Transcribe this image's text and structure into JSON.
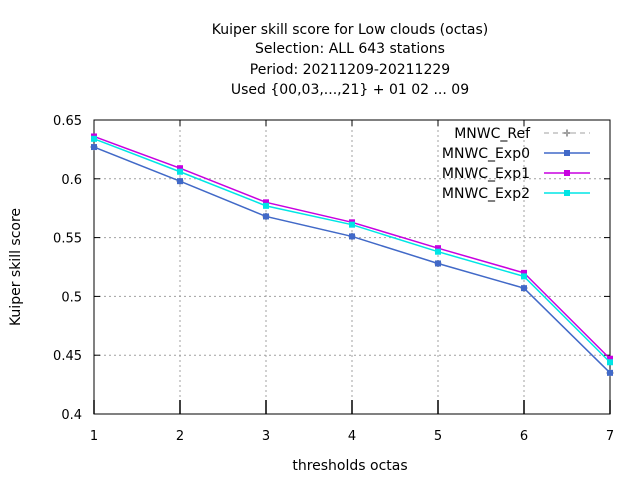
{
  "title_lines": [
    "Kuiper skill score  for Low clouds (octas)",
    "Selection: ALL    643 stations",
    "Period: 20211209-20211229",
    "Used {00,03,...,21} + 01 02 ... 09"
  ],
  "chart_data": {
    "type": "line",
    "title": "Kuiper skill score  for Low clouds (octas)",
    "xlabel": "thresholds octas",
    "ylabel": "Kuiper skill score",
    "x": [
      1,
      2,
      3,
      4,
      5,
      6,
      7
    ],
    "xlim": [
      1,
      7
    ],
    "ylim": [
      0.4,
      0.65
    ],
    "yticks": [
      0.4,
      0.45,
      0.5,
      0.55,
      0.6,
      0.65
    ],
    "ytick_labels": [
      "0.4",
      "0.45",
      "0.5",
      "0.55",
      "0.6",
      "0.65"
    ],
    "xtick_labels": [
      "1",
      "2",
      "3",
      "4",
      "5",
      "6",
      "7"
    ],
    "grid": true,
    "legend_position": "top-right",
    "series": [
      {
        "name": "MNWC_Ref",
        "color": "#a0a0a0",
        "dashed": true,
        "values": [
          0.627,
          0.598,
          0.568,
          0.551,
          0.528,
          0.507,
          0.435
        ]
      },
      {
        "name": "MNWC_Exp0",
        "color": "#4169c8",
        "dashed": false,
        "values": [
          0.627,
          0.598,
          0.568,
          0.551,
          0.528,
          0.507,
          0.435
        ]
      },
      {
        "name": "MNWC_Exp1",
        "color": "#c800e0",
        "dashed": false,
        "values": [
          0.636,
          0.609,
          0.58,
          0.563,
          0.541,
          0.52,
          0.447
        ]
      },
      {
        "name": "MNWC_Exp2",
        "color": "#00e5e5",
        "dashed": false,
        "values": [
          0.634,
          0.606,
          0.577,
          0.561,
          0.538,
          0.517,
          0.444
        ]
      }
    ]
  }
}
